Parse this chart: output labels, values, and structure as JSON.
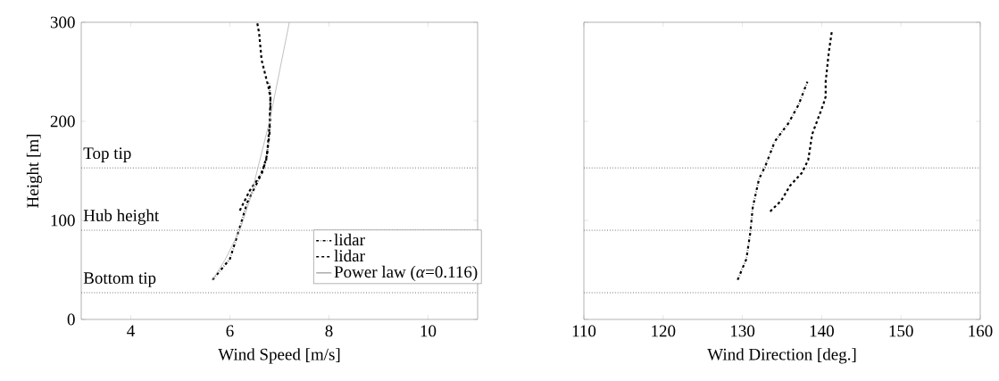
{
  "chart_data": [
    {
      "type": "line",
      "xlabel": "Wind Speed [m/s]",
      "ylabel": "Height [m]",
      "xlim": [
        3,
        11
      ],
      "xticks": [
        4,
        6,
        8,
        10
      ],
      "ylim": [
        0,
        300
      ],
      "yticks": [
        0,
        100,
        200,
        300
      ],
      "grid": false,
      "legend": "bottom right",
      "series": [
        {
          "name": "lidar",
          "color": "#000000",
          "line_style": "dashdot",
          "x": [
            5.65,
            6.0,
            6.17,
            6.35,
            6.59,
            6.73,
            6.8,
            6.82,
            6.8
          ],
          "values": [
            40,
            61,
            88,
            118,
            142,
            160,
            187,
            217,
            238
          ]
        },
        {
          "name": "lidar",
          "color": "#000000",
          "line_style": "dashed",
          "x": [
            6.2,
            6.4,
            6.65,
            6.75,
            6.8,
            6.82,
            6.77,
            6.75,
            6.64,
            6.59,
            6.55
          ],
          "values": [
            110,
            130,
            148,
            166,
            196,
            223,
            237,
            240,
            262,
            289,
            300
          ]
        },
        {
          "name": "Power law (*α*=0.116)",
          "color": "#b0b0b0",
          "line_style": "solid",
          "x": [
            5.65,
            5.9,
            6.2,
            6.4,
            6.6,
            6.8,
            7.0,
            7.2
          ],
          "values": [
            40,
            60,
            90,
            120,
            160,
            200,
            250,
            300
          ]
        }
      ],
      "ref_lines": [
        {
          "axis": "y",
          "value": 153,
          "label": "Top tip",
          "color": "#555555",
          "line_style": "dotted"
        },
        {
          "axis": "y",
          "value": 90,
          "label": "Hub height",
          "color": "#555555",
          "line_style": "dotted"
        },
        {
          "axis": "y",
          "value": 27,
          "label": "Bottom tip",
          "color": "#555555",
          "line_style": "dotted"
        }
      ]
    },
    {
      "type": "line",
      "xlabel": "Wind Direction [deg.]",
      "xlim": [
        110,
        160
      ],
      "xticks": [
        110,
        120,
        130,
        140,
        150,
        160
      ],
      "ylim": [
        0,
        300
      ],
      "yticks": [
        0,
        100,
        200,
        300
      ],
      "grid": false,
      "tick_labels": "x",
      "series": [
        {
          "color": "#000000",
          "line_style": "dashdot",
          "x": [
            129.4,
            130.5,
            131.0,
            131.3,
            132.1,
            132.9,
            134.1,
            135.8,
            137.1,
            138.2
          ],
          "values": [
            40,
            61,
            88,
            113,
            142,
            155,
            180,
            198,
            217,
            240
          ]
        },
        {
          "color": "#000000",
          "line_style": "dashed",
          "x": [
            133.5,
            134.9,
            136.0,
            137.5,
            138.3,
            138.8,
            140.2,
            140.5,
            140.5,
            140.9,
            141.3
          ],
          "values": [
            109,
            120,
            135,
            148,
            161,
            187,
            217,
            225,
            240,
            270,
            292
          ]
        }
      ],
      "ref_lines": [
        {
          "axis": "y",
          "value": 153,
          "color": "#555555",
          "line_style": "dotted"
        },
        {
          "axis": "y",
          "value": 90,
          "color": "#555555",
          "line_style": "dotted"
        },
        {
          "axis": "y",
          "value": 27,
          "color": "#555555",
          "line_style": "dotted"
        }
      ]
    }
  ]
}
